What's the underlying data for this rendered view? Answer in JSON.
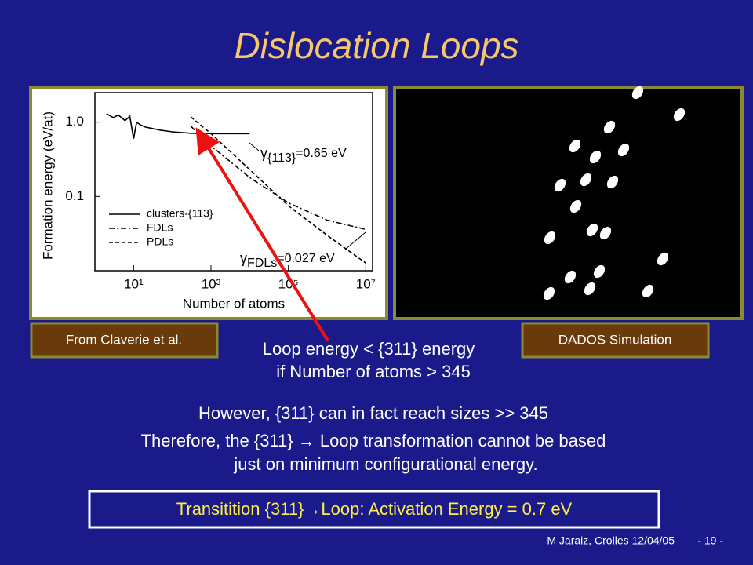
{
  "slide": {
    "title": "Dislocation Loops",
    "caption_left": "From Claverie et al.",
    "caption_right": "DADOS Simulation",
    "note_lines": [
      "Loop energy < {311} energy",
      "if Number of atoms > 345"
    ],
    "body": [
      "However, {311} can in fact reach sizes >> 345",
      "Therefore, the {311} → Loop transformation cannot be based",
      "just on minimum configurational energy."
    ],
    "highlight": "Transitition {311}→Loop: Activation Energy = 0.7 eV",
    "footer": "M Jaraiz, Crolles 12/04/05",
    "page_number": "- 19 -"
  },
  "chart_data": {
    "type": "line",
    "x_label": "Number of atoms",
    "y_label": "Formation energy (eV/at)",
    "xscale": "log",
    "yscale": "log",
    "xlim": [
      1,
      15000000
    ],
    "ylim": [
      0.01,
      2.5
    ],
    "xticks": [
      {
        "value": 10,
        "label": "10¹"
      },
      {
        "value": 1000,
        "label": "10³"
      },
      {
        "value": 100000,
        "label": "10⁵"
      },
      {
        "value": 10000000,
        "label": "10⁷"
      }
    ],
    "yticks": [
      {
        "value": 1,
        "label": "1.0"
      },
      0.1
    ],
    "legend": "lower left",
    "series": [
      {
        "name": "clusters-{113}",
        "color": "#000000",
        "linestyle": "solid",
        "x": [
          2,
          3,
          4,
          6,
          8,
          10,
          12,
          15,
          20,
          50,
          100,
          300,
          1000,
          3000,
          10000
        ],
        "values": [
          1.3,
          1.15,
          1.25,
          1.05,
          1.2,
          0.6,
          1.0,
          0.92,
          0.86,
          0.78,
          0.74,
          0.71,
          0.7,
          0.7,
          0.7
        ]
      },
      {
        "name": "FDLs",
        "color": "#000000",
        "linestyle": "dashdot",
        "x": [
          300,
          1000,
          10000,
          100000,
          1000000,
          10000000
        ],
        "values": [
          0.885,
          0.48,
          0.18,
          0.082,
          0.048,
          0.036
        ]
      },
      {
        "name": "PDLs",
        "color": "#000000",
        "linestyle": "dashed",
        "x": [
          300,
          1000,
          10000,
          100000,
          1000000,
          10000000
        ],
        "values": [
          1.18,
          0.7,
          0.23,
          0.075,
          0.03,
          0.0127
        ]
      }
    ],
    "annotations": [
      {
        "symbol": "γ",
        "subscript": "{113}",
        "text": "=0.65 eV"
      },
      {
        "symbol": "γ",
        "subscript": "FDLs",
        "text": "=0.027 eV"
      }
    ]
  }
}
